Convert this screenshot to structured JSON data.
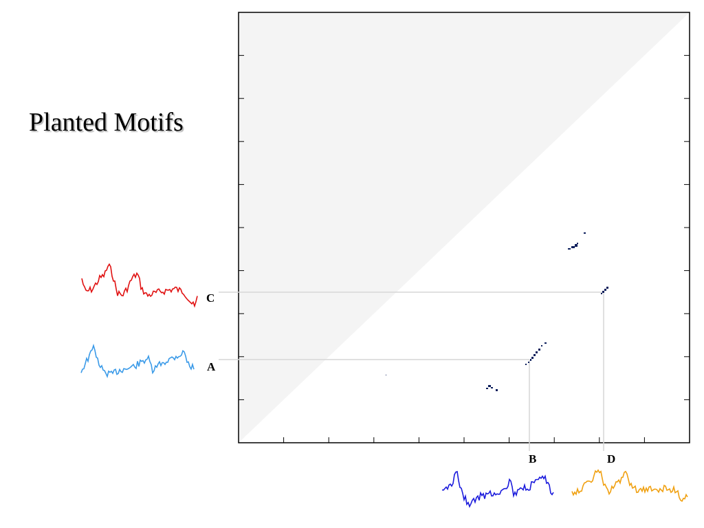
{
  "title": "Planted Motifs",
  "motifs": [
    {
      "label": "A",
      "color": "#3a9ae8",
      "shape": "light-blue-waveform"
    },
    {
      "label": "B",
      "color": "#1a1adc",
      "shape": "dark-blue-waveform"
    },
    {
      "label": "C",
      "color": "#e01010",
      "shape": "red-waveform"
    },
    {
      "label": "D",
      "color": "#f0a010",
      "shape": "orange-waveform"
    }
  ],
  "matrix": {
    "background": "#ffffff",
    "shaded_triangle": "#f4f4f4",
    "mark_color": "#0d1f5c",
    "connector_color": "#d8d8d8"
  }
}
